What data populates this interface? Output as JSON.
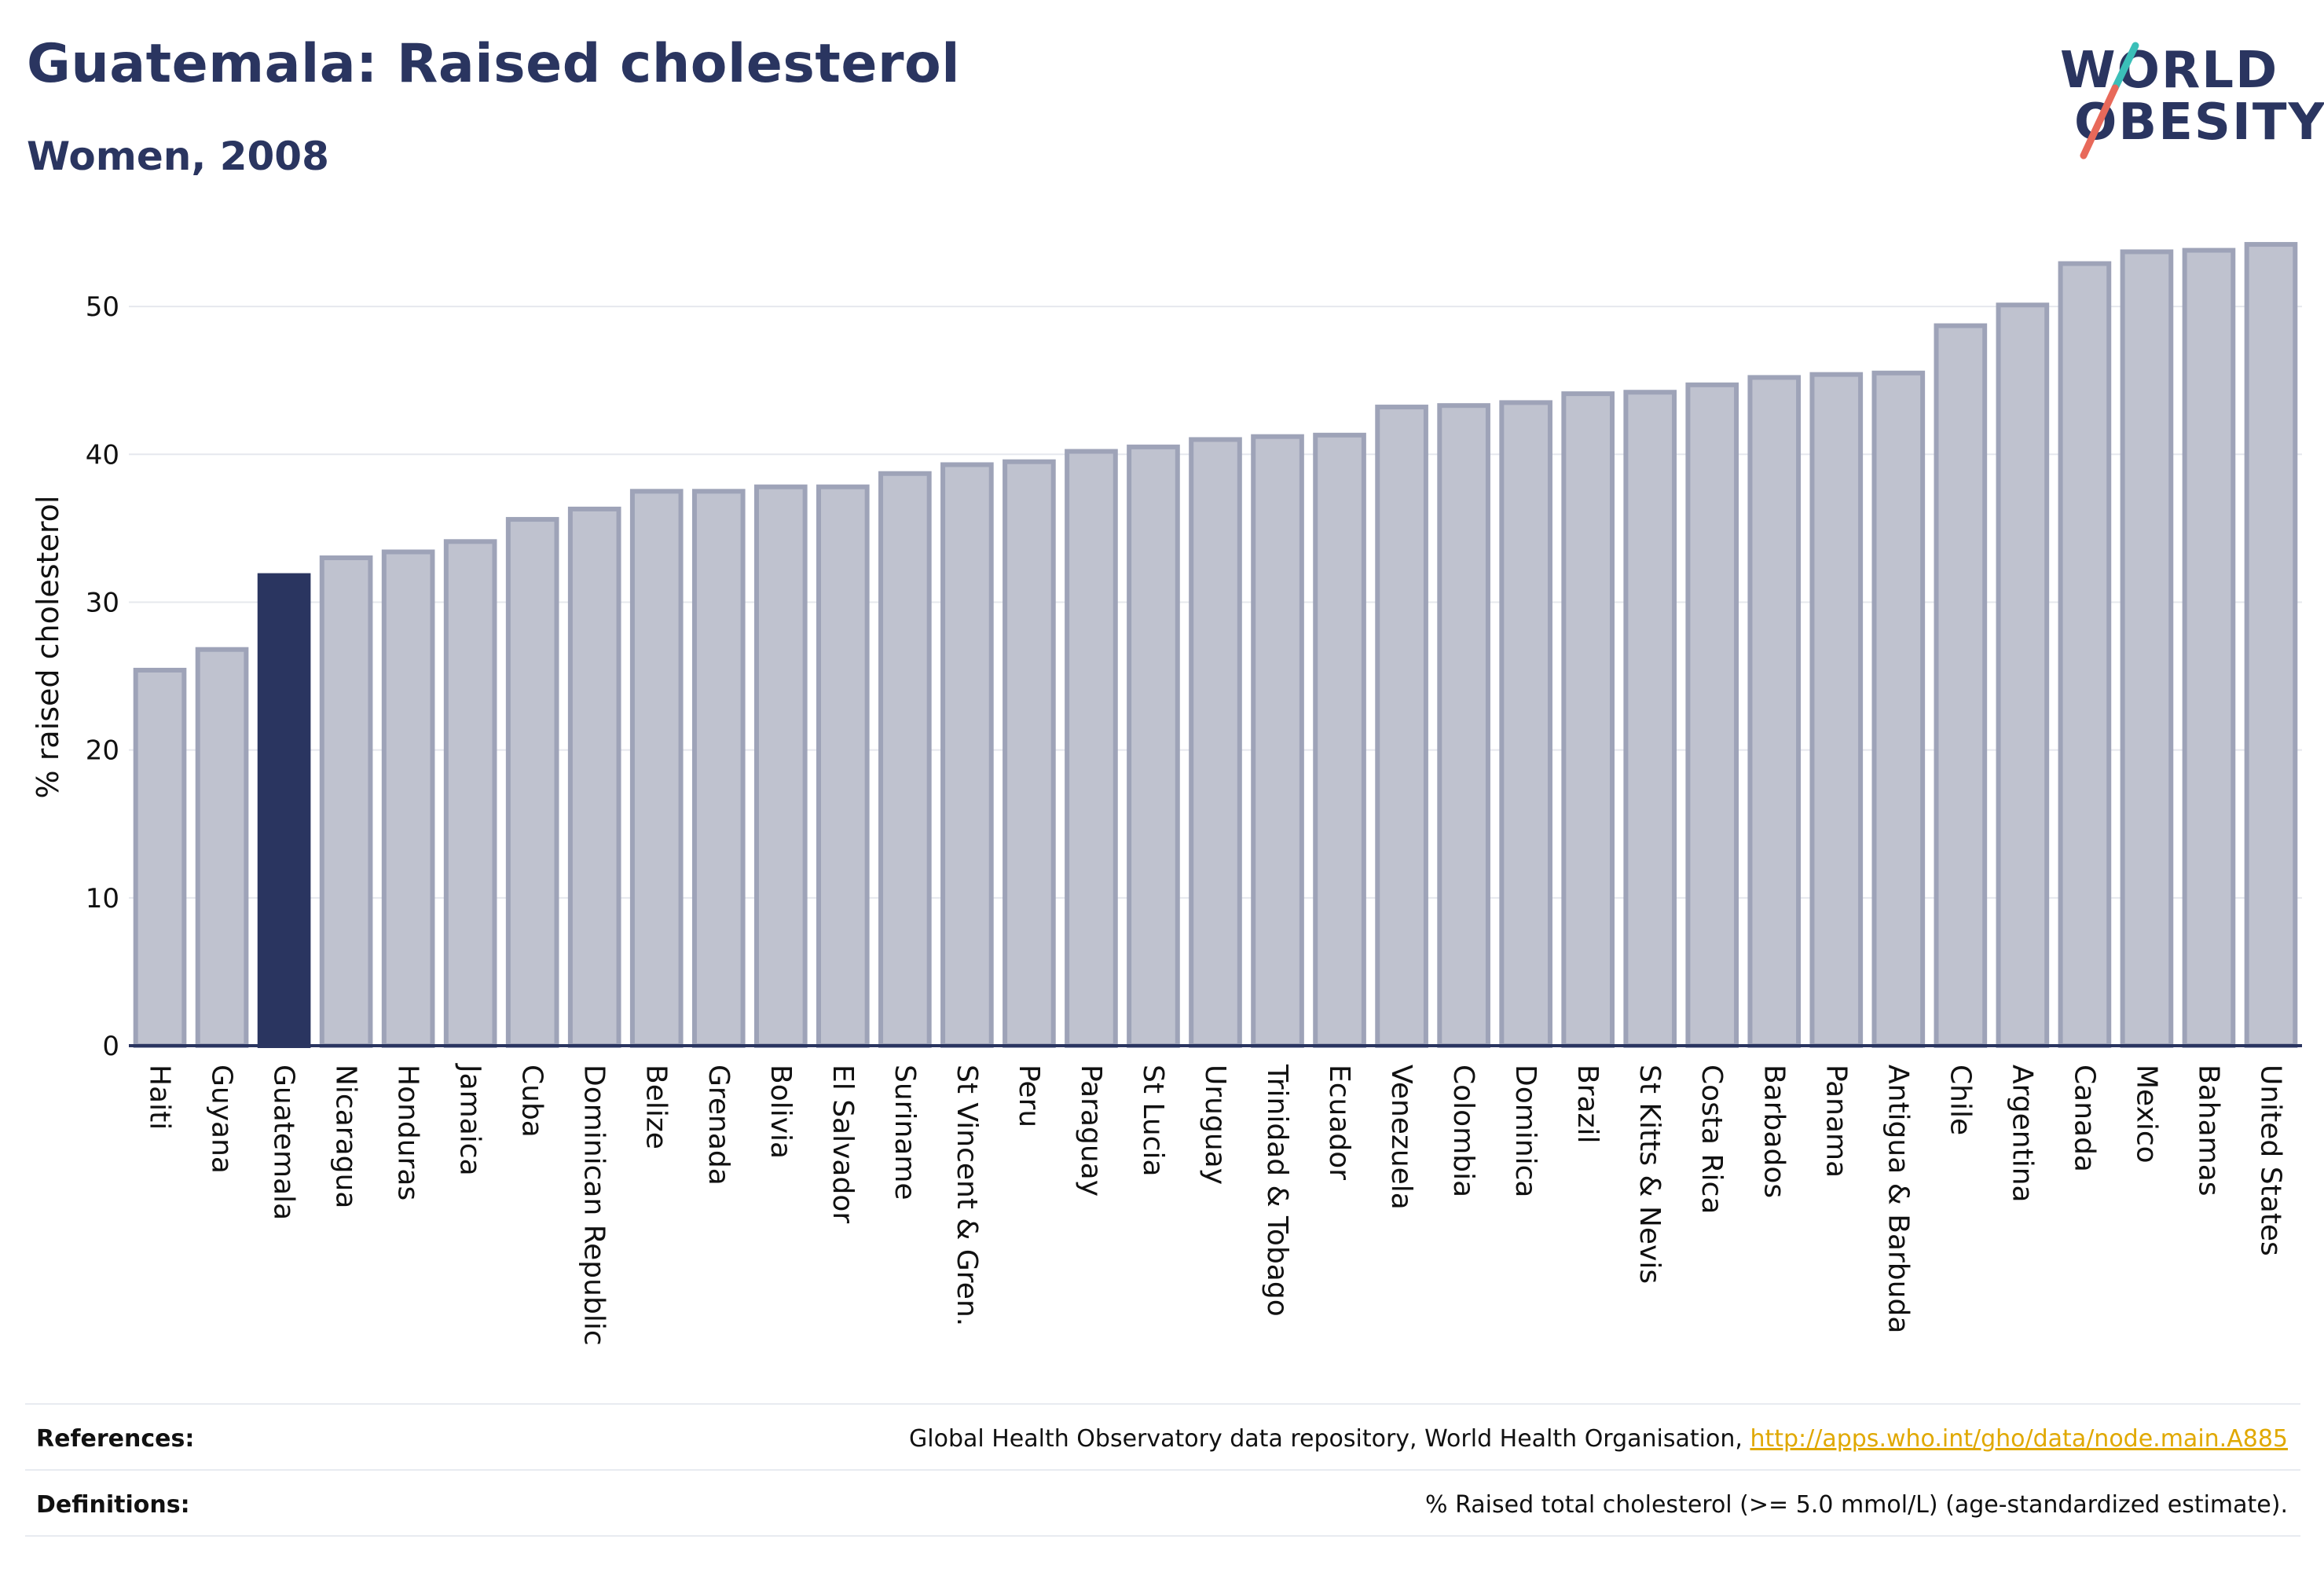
{
  "header": {
    "title": "Guatemala: Raised cholesterol",
    "subtitle": "Women, 2008"
  },
  "logo": {
    "line1": "WORLD",
    "line2": "OBESITY",
    "accent_colors": [
      "#3bbfb8",
      "#e8695a"
    ]
  },
  "colors": {
    "highlight_bar": "#2a3560",
    "bar_fill": "#bfc2cf",
    "bar_stroke": "#9ea3b8",
    "grid": "#e6e8ee",
    "axis": "#2a3560"
  },
  "chart_data": {
    "type": "bar",
    "title": "Guatemala: Raised cholesterol",
    "subtitle": "Women, 2008",
    "xlabel": "",
    "ylabel": "% raised cholesterol",
    "ylim": [
      0,
      55
    ],
    "yticks": [
      0,
      10,
      20,
      30,
      40,
      50
    ],
    "grid": true,
    "highlight": "Guatemala",
    "categories": [
      "Haiti",
      "Guyana",
      "Guatemala",
      "Nicaragua",
      "Honduras",
      "Jamaica",
      "Cuba",
      "Dominican Republic",
      "Belize",
      "Grenada",
      "Bolivia",
      "El Salvador",
      "Suriname",
      "St Vincent & Gren.",
      "Peru",
      "Paraguay",
      "St Lucia",
      "Uruguay",
      "Trinidad & Tobago",
      "Ecuador",
      "Venezuela",
      "Colombia",
      "Dominica",
      "Brazil",
      "St Kitts & Nevis",
      "Costa Rica",
      "Barbados",
      "Panama",
      "Antigua & Barbuda",
      "Chile",
      "Argentina",
      "Canada",
      "Mexico",
      "Bahamas",
      "United States"
    ],
    "values": [
      25.4,
      26.8,
      31.8,
      33.0,
      33.4,
      34.1,
      35.6,
      36.3,
      37.5,
      37.5,
      37.8,
      37.8,
      38.7,
      39.3,
      39.5,
      40.2,
      40.5,
      41.0,
      41.2,
      41.3,
      43.2,
      43.3,
      43.5,
      44.1,
      44.2,
      44.7,
      45.2,
      45.4,
      45.5,
      48.7,
      50.1,
      52.9,
      53.7,
      53.8,
      54.2
    ]
  },
  "footer": {
    "references_label": "References:",
    "references_text": "Global Health Observatory data repository, World Health Organisation, ",
    "references_link": "http://apps.who.int/gho/data/node.main.A885",
    "definitions_label": "Definitions:",
    "definitions_text": "% Raised total cholesterol (>= 5.0 mmol/L) (age-standardized estimate)."
  }
}
